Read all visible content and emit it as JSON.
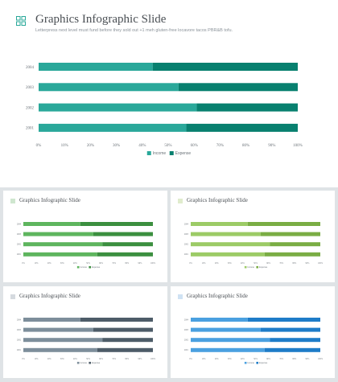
{
  "colors": {
    "teal": [
      "#2aa89a",
      "#08806f"
    ],
    "green": [
      "#5eb55e",
      "#3b8f3f"
    ],
    "lime": [
      "#9ccb66",
      "#7aad44"
    ],
    "slate": [
      "#7d8e9b",
      "#4d5c68"
    ],
    "blue": [
      "#4aa0e0",
      "#1e7cc8"
    ]
  },
  "icons": {
    "logo": "four-squares-icon"
  },
  "slides": [
    {
      "title": "Graphics Infographic Slide",
      "subtitle": "Letterpress next level must fund before they sold out +1 meh gluten-free locavore tacos PBR&B tofu.",
      "palette": "teal"
    },
    {
      "title": "Graphics Infographic Slide",
      "palette": "green"
    },
    {
      "title": "Graphics Infographic Slide",
      "palette": "lime"
    },
    {
      "title": "Graphics Infographic Slide",
      "palette": "slate"
    },
    {
      "title": "Graphics Infographic Slide",
      "palette": "blue"
    }
  ],
  "chart_data": {
    "type": "bar",
    "orientation": "horizontal",
    "stacked": true,
    "categories": [
      "2004",
      "2003",
      "2002",
      "2001"
    ],
    "series": [
      {
        "name": "Income",
        "values": [
          44,
          54,
          61,
          57
        ]
      },
      {
        "name": "Expense",
        "values": [
          56,
          46,
          39,
          43
        ]
      }
    ],
    "xlim": [
      0,
      100
    ],
    "xticks": [
      "0%",
      "10%",
      "20%",
      "30%",
      "40%",
      "50%",
      "60%",
      "70%",
      "80%",
      "90%",
      "100%"
    ],
    "legend_position": "bottom"
  }
}
